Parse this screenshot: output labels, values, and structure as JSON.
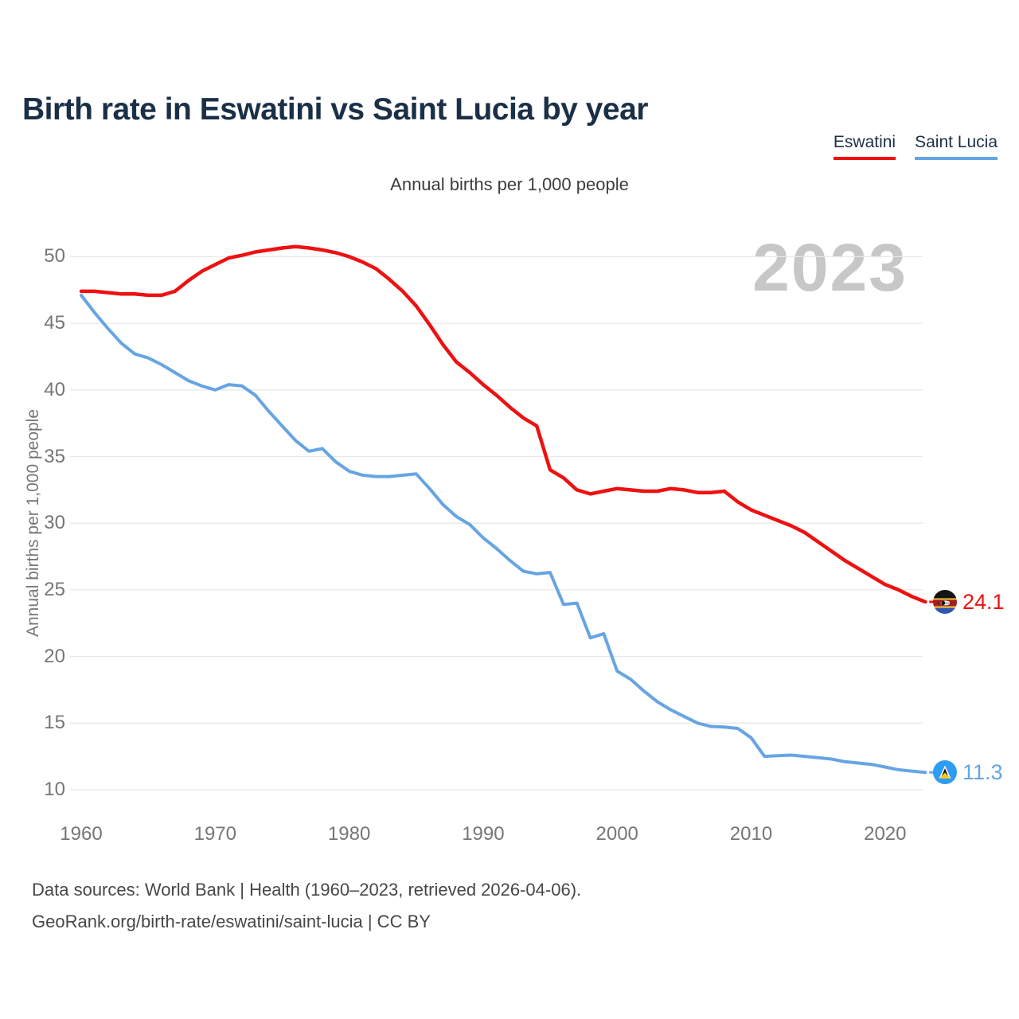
{
  "header": {
    "title": "Birth rate in Eswatini vs Saint Lucia by year"
  },
  "legend": {
    "eswatini": "Eswatini",
    "saint_lucia": "Saint Lucia"
  },
  "chart": {
    "subtitle": "Annual births per 1,000 people",
    "y_axis_title": "Annual births per 1,000 people",
    "watermark": "2023"
  },
  "chart_data": {
    "type": "line",
    "title": "Birth rate in Eswatini vs Saint Lucia by year",
    "subtitle": "Annual births per 1,000 people",
    "xlabel": "",
    "ylabel": "Annual births per 1,000 people",
    "grid": "horizontal",
    "legend_position": "top-right",
    "x_ticks": [
      1960,
      1970,
      1980,
      1990,
      2000,
      2010,
      2020
    ],
    "y_ticks": [
      10,
      15,
      20,
      25,
      30,
      35,
      40,
      45,
      50
    ],
    "ylim": [
      8.5,
      52
    ],
    "xlim": [
      1960,
      2023
    ],
    "x": [
      1960,
      1961,
      1962,
      1963,
      1964,
      1965,
      1966,
      1967,
      1968,
      1969,
      1970,
      1971,
      1972,
      1973,
      1974,
      1975,
      1976,
      1977,
      1978,
      1979,
      1980,
      1981,
      1982,
      1983,
      1984,
      1985,
      1986,
      1987,
      1988,
      1989,
      1990,
      1991,
      1992,
      1993,
      1994,
      1995,
      1996,
      1997,
      1998,
      1999,
      2000,
      2001,
      2002,
      2003,
      2004,
      2005,
      2006,
      2007,
      2008,
      2009,
      2010,
      2011,
      2012,
      2013,
      2014,
      2015,
      2016,
      2017,
      2018,
      2019,
      2020,
      2021,
      2022,
      2023
    ],
    "series": [
      {
        "name": "Eswatini",
        "color": "#ee1111",
        "end_label": "24.1",
        "values": [
          47.4,
          47.4,
          47.3,
          47.2,
          47.2,
          47.1,
          47.1,
          47.4,
          48.2,
          48.9,
          49.4,
          49.9,
          50.1,
          50.35,
          50.5,
          50.65,
          50.75,
          50.65,
          50.5,
          50.3,
          50.0,
          49.6,
          49.1,
          48.3,
          47.4,
          46.3,
          44.9,
          43.4,
          42.1,
          41.3,
          40.4,
          39.6,
          38.7,
          37.9,
          37.3,
          34.0,
          33.4,
          32.5,
          32.2,
          32.4,
          32.6,
          32.5,
          32.4,
          32.4,
          32.6,
          32.5,
          32.3,
          32.3,
          32.4,
          31.6,
          31.0,
          30.6,
          30.2,
          29.8,
          29.3,
          28.6,
          27.9,
          27.2,
          26.6,
          26.0,
          25.4,
          25.0,
          24.5,
          24.1
        ]
      },
      {
        "name": "Saint Lucia",
        "color": "#66a5e2",
        "end_label": "11.3",
        "values": [
          47.1,
          45.8,
          44.6,
          43.5,
          42.7,
          42.4,
          41.9,
          41.3,
          40.7,
          40.3,
          40.0,
          40.4,
          40.3,
          39.6,
          38.4,
          37.3,
          36.2,
          35.4,
          35.6,
          34.6,
          33.9,
          33.6,
          33.5,
          33.5,
          33.6,
          33.7,
          32.6,
          31.4,
          30.5,
          29.9,
          28.9,
          28.1,
          27.2,
          26.4,
          26.2,
          26.3,
          23.9,
          24.0,
          21.4,
          21.7,
          18.9,
          18.3,
          17.4,
          16.6,
          16.0,
          15.5,
          15.0,
          14.75,
          14.7,
          14.6,
          13.9,
          12.5,
          12.55,
          12.6,
          12.5,
          12.4,
          12.3,
          12.1,
          12.0,
          11.9,
          11.7,
          11.5,
          11.4,
          11.3
        ]
      }
    ]
  },
  "footer": {
    "line1": "Data sources: World Bank | Health (1960–2023, retrieved 2026-04-06).",
    "line2": "GeoRank.org/birth-rate/eswatini/saint-lucia | CC BY"
  }
}
